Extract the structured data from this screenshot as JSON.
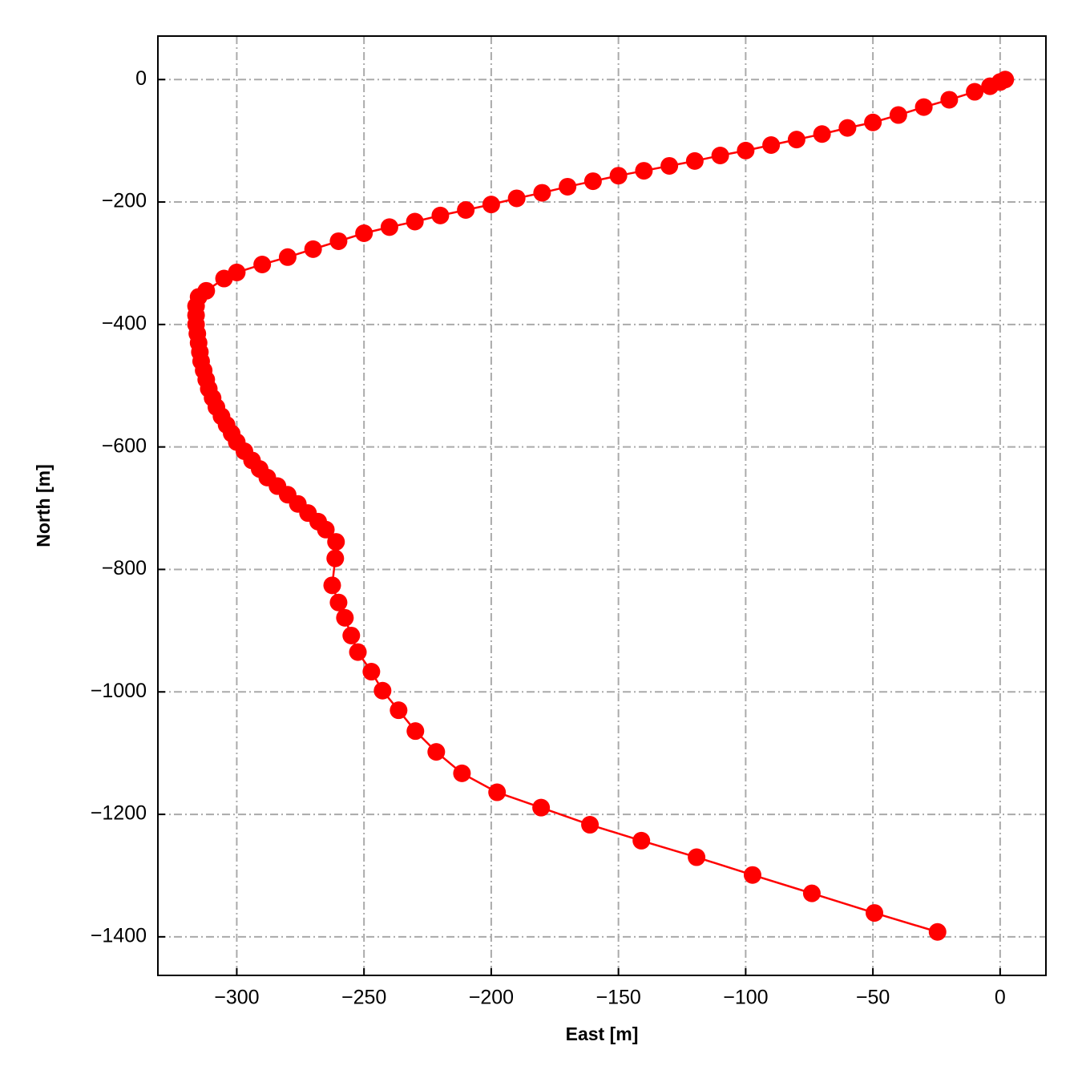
{
  "chart_data": {
    "type": "line",
    "xlabel": "East [m]",
    "ylabel": "North [m]",
    "series": [
      {
        "color": "#ff0000",
        "x": [
          2,
          0,
          -4,
          -10,
          -20,
          -30,
          -40,
          -50,
          -60,
          -70,
          -80,
          -90,
          -100,
          -110,
          -120,
          -130,
          -140,
          -150,
          -160,
          -170,
          -180,
          -190,
          -200,
          -210,
          -220,
          -230,
          -240,
          -250,
          -260,
          -270,
          -280,
          -290,
          -300,
          -305,
          -312,
          -315,
          -316,
          -316,
          -316,
          -315.5,
          -315,
          -314.5,
          -314,
          -313,
          -312,
          -311,
          -309.5,
          -308,
          -306,
          -304,
          -302,
          -300,
          -297,
          -294,
          -291,
          -288,
          -284,
          -280,
          -276,
          -272,
          -268,
          -265,
          -261,
          -261.3,
          -262.5,
          -260,
          -257.5,
          -255,
          -252.4,
          -247.1,
          -242.7,
          -236.4,
          -229.8,
          -221.6,
          -211.5,
          -197.7,
          -180.4,
          -161.2,
          -141,
          -119.3,
          -97.3,
          -74,
          -49.4,
          -24.6
        ],
        "values": [
          0,
          -4,
          -11,
          -20,
          -33,
          -45,
          -58,
          -70,
          -79,
          -89,
          -98,
          -107,
          -116,
          -124,
          -133,
          -141,
          -149,
          -157,
          -166,
          -175,
          -185,
          -194,
          -204,
          -213,
          -222,
          -232,
          -241,
          -251,
          -264,
          -277,
          -290,
          -302,
          -315,
          -325,
          -345,
          -355,
          -370,
          -385,
          -400,
          -415,
          -430,
          -445,
          -460,
          -475,
          -490,
          -505,
          -520,
          -535,
          -550,
          -564,
          -578,
          -592,
          -607,
          -622,
          -636,
          -650,
          -664,
          -678,
          -693,
          -708,
          -722,
          -735,
          -755,
          -782,
          -826,
          -854,
          -879,
          -908,
          -935,
          -967,
          -998,
          -1030,
          -1064,
          -1098,
          -1133,
          -1164,
          -1189,
          -1217,
          -1243,
          -1270,
          -1299,
          -1329,
          -1361,
          -1392
        ]
      }
    ],
    "xlim": [
      -331,
      18
    ],
    "ylim": [
      -1463,
      71
    ],
    "xticks": [
      {
        "value": -300,
        "label": "−300"
      },
      {
        "value": -250,
        "label": "−250"
      },
      {
        "value": -200,
        "label": "−200"
      },
      {
        "value": -150,
        "label": "−150"
      },
      {
        "value": -100,
        "label": "−100"
      },
      {
        "value": -50,
        "label": "−50"
      },
      0
    ],
    "yticks": [
      0,
      {
        "value": -200,
        "label": "−200"
      },
      {
        "value": -400,
        "label": "−400"
      },
      {
        "value": -600,
        "label": "−600"
      },
      {
        "value": -800,
        "label": "−800"
      },
      {
        "value": -1000,
        "label": "−1000"
      },
      {
        "value": -1200,
        "label": "−1200"
      },
      {
        "value": -1400,
        "label": "−1400"
      }
    ],
    "grid": true
  }
}
